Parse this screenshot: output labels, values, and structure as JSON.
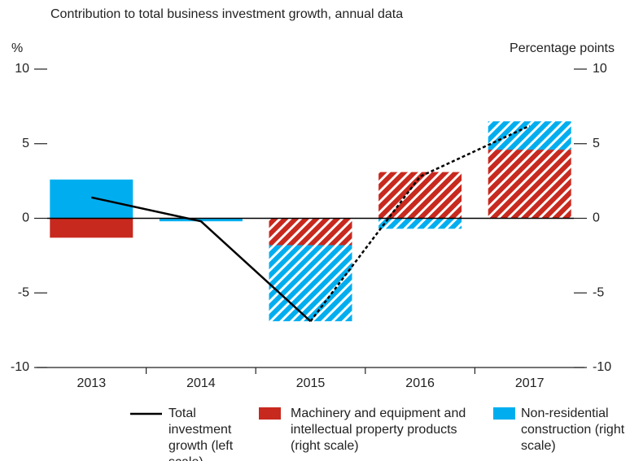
{
  "chart_data": {
    "type": "bar",
    "subtitle": "Contribution to total business investment growth, annual data",
    "y_label": "%",
    "y2_label": "Percentage points",
    "categories": [
      "2013",
      "2014",
      "2015",
      "2016",
      "2017"
    ],
    "hatched": [
      false,
      false,
      true,
      true,
      true
    ],
    "series": [
      {
        "name": "Total investment growth (left scale)",
        "type": "line",
        "color": "#000000",
        "values": [
          1.4,
          -0.2,
          -6.9,
          2.8,
          6.2
        ]
      },
      {
        "name": "Machinery and equipment and intellectual property products (right scale)",
        "type": "bar",
        "axis": "y2",
        "color": "#c8291e",
        "values": [
          -1.3,
          0,
          -1.8,
          3.1,
          4.6
        ]
      },
      {
        "name": "Non-residential construction (right scale)",
        "type": "bar",
        "axis": "y2",
        "color": "#00aeef",
        "values": [
          2.6,
          -0.2,
          -5.1,
          -0.7,
          1.9
        ]
      }
    ],
    "ylim": [
      -10,
      10
    ],
    "yticks": [
      -10,
      -5,
      0,
      5,
      10
    ],
    "y2lim": [
      -10,
      10
    ],
    "y2ticks": [
      -10,
      -5,
      0,
      5,
      10
    ]
  }
}
